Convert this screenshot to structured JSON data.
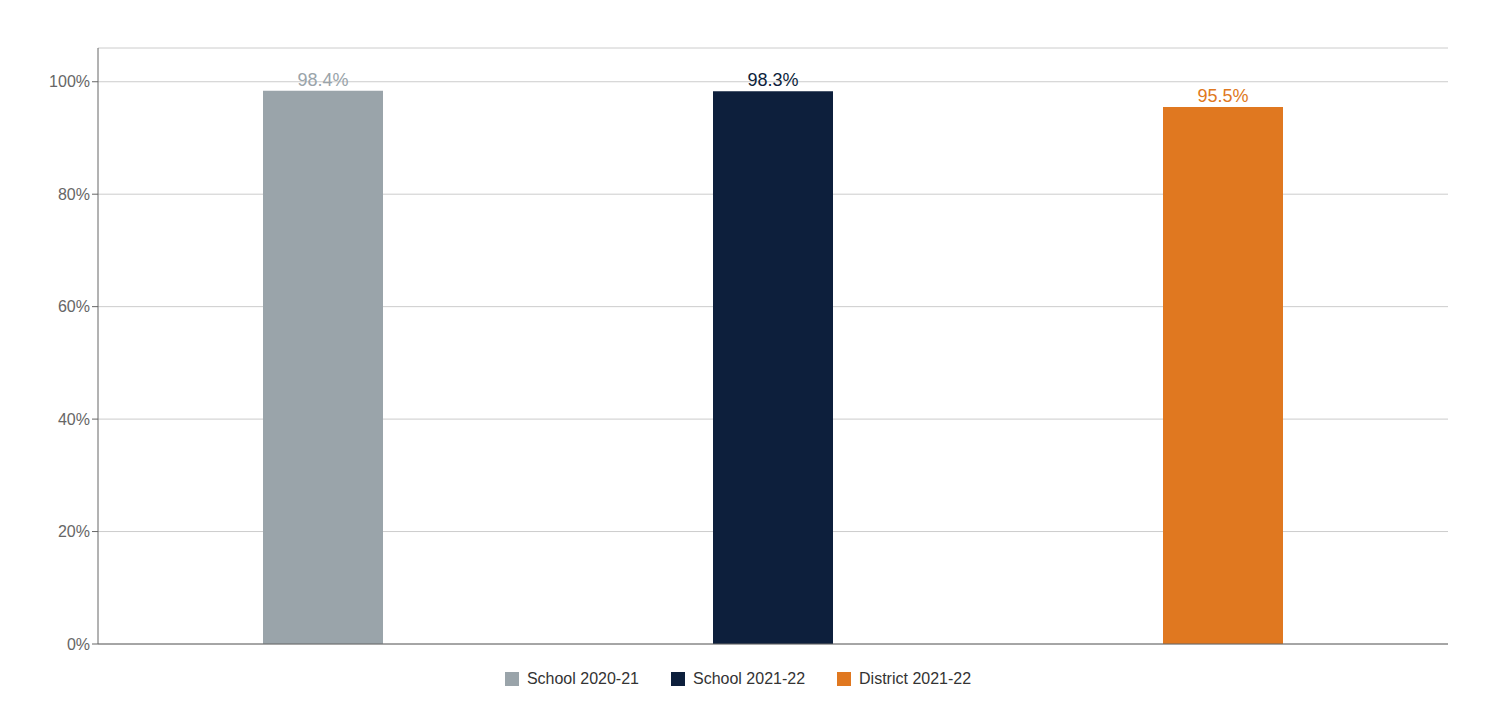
{
  "chart_data": {
    "type": "bar",
    "categories": [
      "School 2020-21",
      "School 2021-22",
      "District 2021-22"
    ],
    "values": [
      98.4,
      98.3,
      95.5
    ],
    "value_labels": [
      "98.4%",
      "98.3%",
      "95.5%"
    ],
    "data_labels": true,
    "colors": [
      "#9AA4AA",
      "#0D1F3C",
      "#E07820"
    ],
    "ylim": [
      0,
      106
    ],
    "yticks": [
      {
        "value": 0,
        "label": "0%"
      },
      {
        "value": 20,
        "label": "20%"
      },
      {
        "value": 40,
        "label": "40%"
      },
      {
        "value": 60,
        "label": "60%"
      },
      {
        "value": 80,
        "label": "80%"
      },
      {
        "value": 100,
        "label": "100%"
      }
    ],
    "grid": true,
    "legend": "bottom",
    "tick_labels": "y"
  }
}
